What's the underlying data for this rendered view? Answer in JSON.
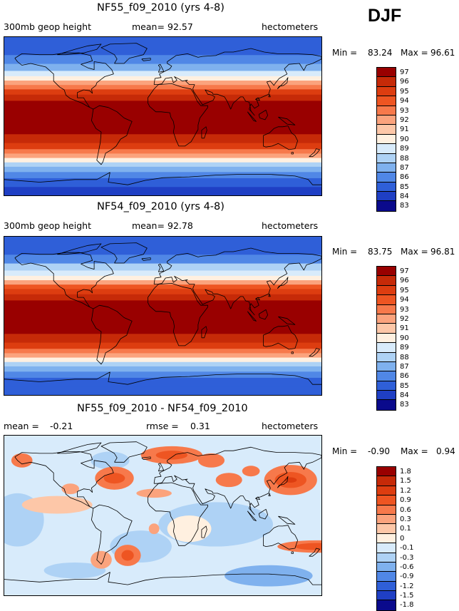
{
  "season": "DJF",
  "chart_data": [
    {
      "type": "heatmap",
      "title": "NF55_f09_2010 (yrs 4-8)",
      "variable": "300mb geop height",
      "mean_label": "mean=",
      "mean": "92.57",
      "units": "hectometers",
      "min_label": "Min =",
      "min": "83.24",
      "max_label": "Max =",
      "max": "96.61",
      "levels": [
        "97",
        "96",
        "95",
        "94",
        "93",
        "92",
        "91",
        "90",
        "89",
        "88",
        "87",
        "86",
        "85",
        "84",
        "83"
      ],
      "colors": [
        "#990000",
        "#c62a08",
        "#dd3d10",
        "#ee5522",
        "#f7794b",
        "#fba37d",
        "#fdc7a8",
        "#fff0e0",
        "#d8ebfb",
        "#aed2f5",
        "#7fb1ee",
        "#5087e6",
        "#2f5fd8",
        "#1f3fc4",
        "#0a0a8c"
      ],
      "bands": [
        {
          "lat_from": -90,
          "lat_to": -80,
          "value": 83.5
        },
        {
          "lat_from": -80,
          "lat_to": -70,
          "value": 84.3
        },
        {
          "lat_from": -70,
          "lat_to": -63,
          "value": 85.3
        },
        {
          "lat_from": -63,
          "lat_to": -57,
          "value": 86.5
        },
        {
          "lat_from": -57,
          "lat_to": -52,
          "value": 87.8
        },
        {
          "lat_from": -52,
          "lat_to": -47,
          "value": 89.2
        },
        {
          "lat_from": -47,
          "lat_to": -42,
          "value": 91.0
        },
        {
          "lat_from": -42,
          "lat_to": -37,
          "value": 92.8
        },
        {
          "lat_from": -37,
          "lat_to": -30,
          "value": 94.6
        },
        {
          "lat_from": -30,
          "lat_to": -20,
          "value": 95.5
        },
        {
          "lat_from": -20,
          "lat_to": 18,
          "value": 96.4
        },
        {
          "lat_from": 18,
          "lat_to": 25,
          "value": 95.5
        },
        {
          "lat_from": 25,
          "lat_to": 31,
          "value": 94.2
        },
        {
          "lat_from": 31,
          "lat_to": 36,
          "value": 92.8
        },
        {
          "lat_from": 36,
          "lat_to": 41,
          "value": 91.1
        },
        {
          "lat_from": 41,
          "lat_to": 46,
          "value": 89.6
        },
        {
          "lat_from": 46,
          "lat_to": 52,
          "value": 88.3
        },
        {
          "lat_from": 52,
          "lat_to": 60,
          "value": 86.9
        },
        {
          "lat_from": 60,
          "lat_to": 70,
          "value": 85.6
        },
        {
          "lat_from": 70,
          "lat_to": 90,
          "value": 84.6
        }
      ]
    },
    {
      "type": "heatmap",
      "title": "NF54_f09_2010 (yrs 4-8)",
      "variable": "300mb geop height",
      "mean_label": "mean=",
      "mean": "92.78",
      "units": "hectometers",
      "min_label": "Min =",
      "min": "83.75",
      "max_label": "Max =",
      "max": "96.81",
      "levels": [
        "97",
        "96",
        "95",
        "94",
        "93",
        "92",
        "91",
        "90",
        "89",
        "88",
        "87",
        "86",
        "85",
        "84",
        "83"
      ],
      "colors": [
        "#990000",
        "#c62a08",
        "#dd3d10",
        "#ee5522",
        "#f7794b",
        "#fba37d",
        "#fdc7a8",
        "#fff0e0",
        "#d8ebfb",
        "#aed2f5",
        "#7fb1ee",
        "#5087e6",
        "#2f5fd8",
        "#1f3fc4",
        "#0a0a8c"
      ],
      "bands": [
        {
          "lat_from": -90,
          "lat_to": -80,
          "value": 84.0
        },
        {
          "lat_from": -80,
          "lat_to": -70,
          "value": 84.6
        },
        {
          "lat_from": -70,
          "lat_to": -63,
          "value": 85.5
        },
        {
          "lat_from": -63,
          "lat_to": -57,
          "value": 86.6
        },
        {
          "lat_from": -57,
          "lat_to": -52,
          "value": 87.9
        },
        {
          "lat_from": -52,
          "lat_to": -47,
          "value": 89.3
        },
        {
          "lat_from": -47,
          "lat_to": -42,
          "value": 91.1
        },
        {
          "lat_from": -42,
          "lat_to": -37,
          "value": 92.9
        },
        {
          "lat_from": -37,
          "lat_to": -30,
          "value": 94.7
        },
        {
          "lat_from": -30,
          "lat_to": -20,
          "value": 95.6
        },
        {
          "lat_from": -20,
          "lat_to": 18,
          "value": 96.5
        },
        {
          "lat_from": 18,
          "lat_to": 25,
          "value": 95.6
        },
        {
          "lat_from": 25,
          "lat_to": 31,
          "value": 94.4
        },
        {
          "lat_from": 31,
          "lat_to": 36,
          "value": 93.0
        },
        {
          "lat_from": 36,
          "lat_to": 41,
          "value": 91.3
        },
        {
          "lat_from": 41,
          "lat_to": 46,
          "value": 89.8
        },
        {
          "lat_from": 46,
          "lat_to": 52,
          "value": 88.4
        },
        {
          "lat_from": 52,
          "lat_to": 60,
          "value": 87.0
        },
        {
          "lat_from": 60,
          "lat_to": 70,
          "value": 85.7
        },
        {
          "lat_from": 70,
          "lat_to": 90,
          "value": 84.8
        }
      ]
    },
    {
      "type": "heatmap",
      "title": "NF55_f09_2010 - NF54_f09_2010",
      "mean_label": "mean =",
      "mean": "-0.21",
      "rmse_label": "rmse =",
      "rmse": "0.31",
      "units": "hectometers",
      "min_label": "Min =",
      "min": "-0.90",
      "max_label": "Max =",
      "max": "0.94",
      "levels": [
        "1.8",
        "1.5",
        "1.2",
        "0.9",
        "0.6",
        "0.3",
        "0.1",
        "0",
        "-0.1",
        "-0.3",
        "-0.6",
        "-0.9",
        "-1.2",
        "-1.5",
        "-1.8"
      ],
      "colors": [
        "#990000",
        "#c62a08",
        "#dd3d10",
        "#ee5522",
        "#f7794b",
        "#fba37d",
        "#fdc7a8",
        "#fff0e0",
        "#d8ebfb",
        "#aed2f5",
        "#7fb1ee",
        "#5087e6",
        "#2f5fd8",
        "#1f3fc4",
        "#0a0a8c"
      ],
      "background_value": -0.2,
      "blobs": [
        {
          "lon": 60,
          "lat": -10,
          "rx_deg": 65,
          "ry_deg": 25,
          "value": -0.45
        },
        {
          "lon": -165,
          "lat": -5,
          "rx_deg": 30,
          "ry_deg": 30,
          "value": -0.45
        },
        {
          "lon": -25,
          "lat": -35,
          "rx_deg": 35,
          "ry_deg": 18,
          "value": -0.45
        },
        {
          "lon": 120,
          "lat": -68,
          "rx_deg": 50,
          "ry_deg": 12,
          "value": -0.7
        },
        {
          "lon": -100,
          "lat": -62,
          "rx_deg": 35,
          "ry_deg": 9,
          "value": -0.6
        },
        {
          "lon": 30,
          "lat": -15,
          "rx_deg": 25,
          "ry_deg": 15,
          "value": -0.05
        },
        {
          "lon": -120,
          "lat": 12,
          "rx_deg": 40,
          "ry_deg": 10,
          "value": 0.0
        },
        {
          "lon": -60,
          "lat": 62,
          "rx_deg": 22,
          "ry_deg": 10,
          "value": -0.6
        },
        {
          "lon": 10,
          "lat": 68,
          "rx_deg": 35,
          "ry_deg": 10,
          "value": 0.45
        },
        {
          "lon": 10,
          "lat": 68,
          "rx_deg": 18,
          "ry_deg": 5,
          "value": 0.7
        },
        {
          "lon": 55,
          "lat": 62,
          "rx_deg": 15,
          "ry_deg": 8,
          "value": 0.35
        },
        {
          "lon": -160,
          "lat": 62,
          "rx_deg": 12,
          "ry_deg": 8,
          "value": 0.35
        },
        {
          "lon": 75,
          "lat": 40,
          "rx_deg": 15,
          "ry_deg": 8,
          "value": 0.4
        },
        {
          "lon": 100,
          "lat": 50,
          "rx_deg": 10,
          "ry_deg": 6,
          "value": 0.3
        },
        {
          "lon": 145,
          "lat": 40,
          "rx_deg": 30,
          "ry_deg": 17,
          "value": 0.45
        },
        {
          "lon": 145,
          "lat": 40,
          "rx_deg": 18,
          "ry_deg": 9,
          "value": 0.7
        },
        {
          "lon": 145,
          "lat": 40,
          "rx_deg": 7,
          "ry_deg": 3,
          "value": 0.9
        },
        {
          "lon": -55,
          "lat": 42,
          "rx_deg": 22,
          "ry_deg": 13,
          "value": 0.45
        },
        {
          "lon": -55,
          "lat": 42,
          "rx_deg": 12,
          "ry_deg": 6,
          "value": 0.7
        },
        {
          "lon": -105,
          "lat": 30,
          "rx_deg": 10,
          "ry_deg": 6,
          "value": 0.2
        },
        {
          "lon": -10,
          "lat": 25,
          "rx_deg": 20,
          "ry_deg": 5,
          "value": 0.2
        },
        {
          "lon": 175,
          "lat": -35,
          "rx_deg": 45,
          "ry_deg": 7,
          "value": 0.45
        },
        {
          "lon": 175,
          "lat": -35,
          "rx_deg": 25,
          "ry_deg": 4,
          "value": 0.7
        },
        {
          "lon": -70,
          "lat": -50,
          "rx_deg": 12,
          "ry_deg": 10,
          "value": 0.2
        },
        {
          "lon": -40,
          "lat": -45,
          "rx_deg": 15,
          "ry_deg": 12,
          "value": 0.45
        },
        {
          "lon": -40,
          "lat": -45,
          "rx_deg": 7,
          "ry_deg": 6,
          "value": 0.7
        },
        {
          "lon": -10,
          "lat": -15,
          "rx_deg": 6,
          "ry_deg": 6,
          "value": 0.2
        }
      ]
    }
  ]
}
